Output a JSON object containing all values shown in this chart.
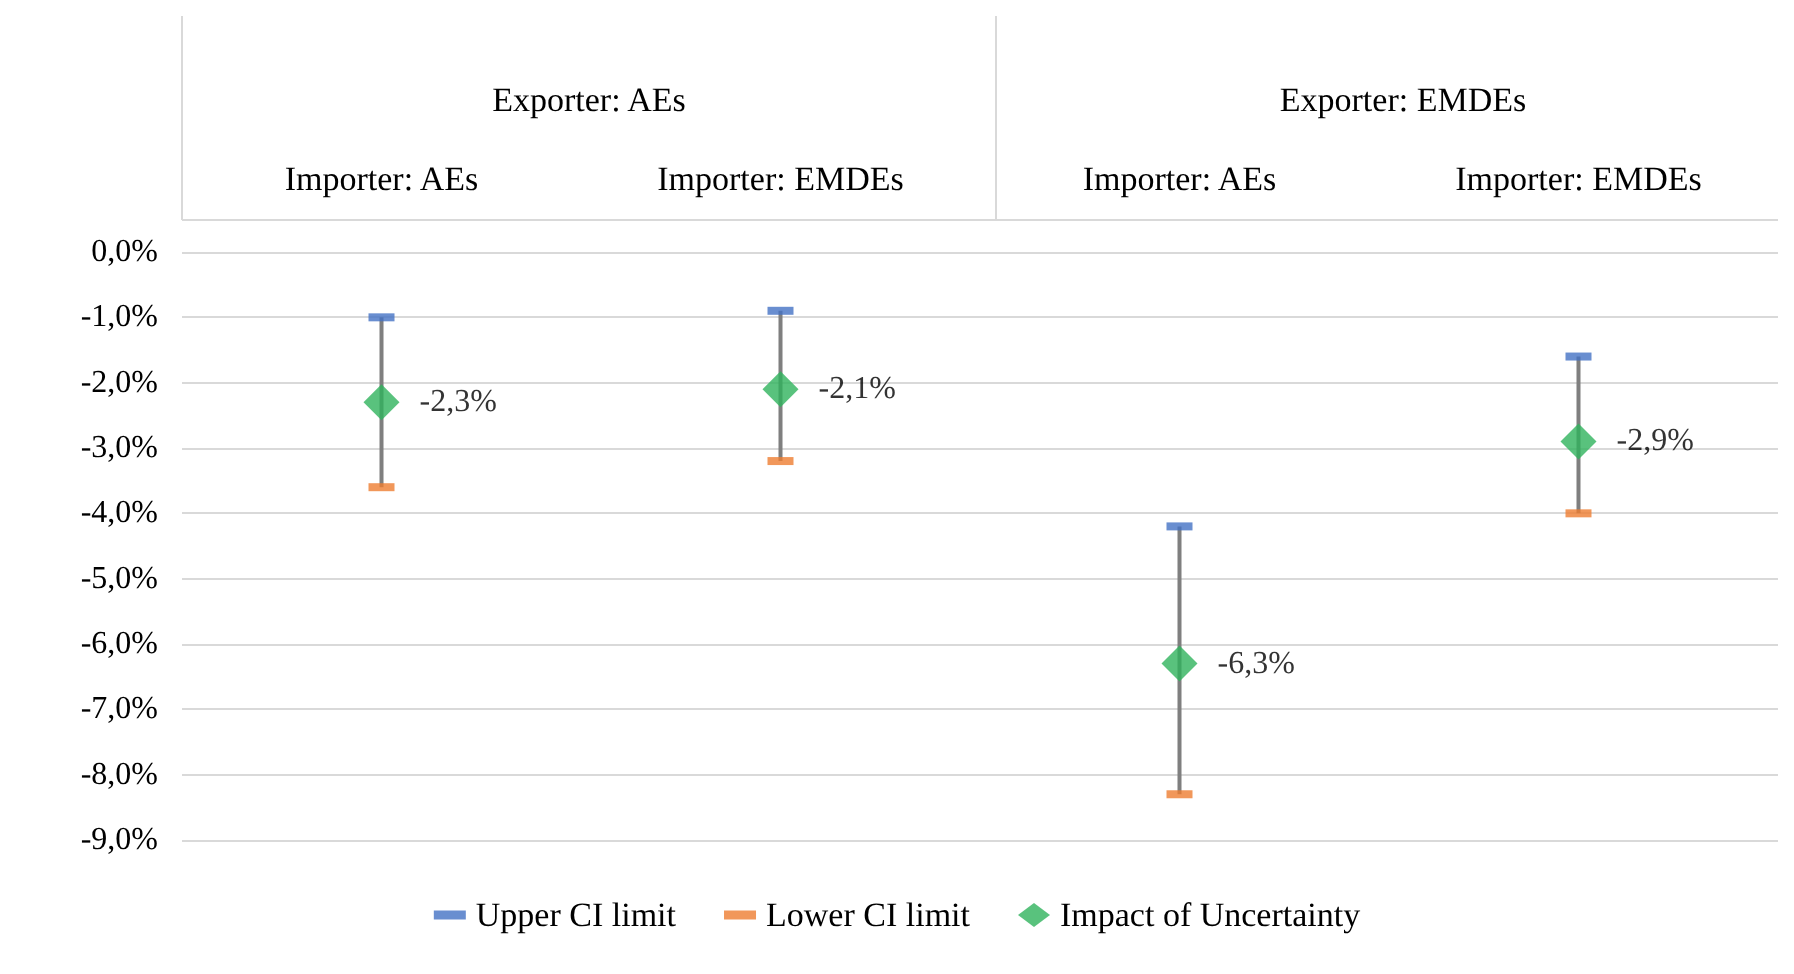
{
  "chart_data": {
    "type": "scatter",
    "categories": [
      "Importer: AEs",
      "Importer: EMDEs",
      "Importer: AEs",
      "Importer: EMDEs"
    ],
    "annotations": [
      "Exporter: AEs",
      "Exporter: EMDEs"
    ],
    "series": [
      {
        "name": "Upper CI limit",
        "color": "#4472c4",
        "values": [
          -1.0,
          -0.9,
          -4.2,
          -1.6
        ]
      },
      {
        "name": "Lower CI limit",
        "color": "#ed7d31",
        "values": [
          -3.6,
          -3.2,
          -8.3,
          -4.0
        ]
      },
      {
        "name": "Impact of Uncertainty",
        "color": "#2fb35c",
        "marker": "diamond",
        "values": [
          -2.3,
          -2.1,
          -6.3,
          -2.9
        ],
        "value_labels": [
          "-2,3%",
          "-2,1%",
          "-6,3%",
          "-2,9%"
        ]
      }
    ],
    "ylim": [
      -9,
      0
    ],
    "yticks": [
      {
        "value": 0,
        "label": "0,0%"
      },
      {
        "value": -1,
        "label": "-1,0%"
      },
      {
        "value": -2,
        "label": "-2,0%"
      },
      {
        "value": -3,
        "label": "-3,0%"
      },
      {
        "value": -4,
        "label": "-4,0%"
      },
      {
        "value": -5,
        "label": "-5,0%"
      },
      {
        "value": -6,
        "label": "-6,0%"
      },
      {
        "value": -7,
        "label": "-7,0%"
      },
      {
        "value": -8,
        "label": "-8,0%"
      },
      {
        "value": -9,
        "label": "-9,0%"
      }
    ],
    "grid": "y",
    "legend": "bottom"
  }
}
